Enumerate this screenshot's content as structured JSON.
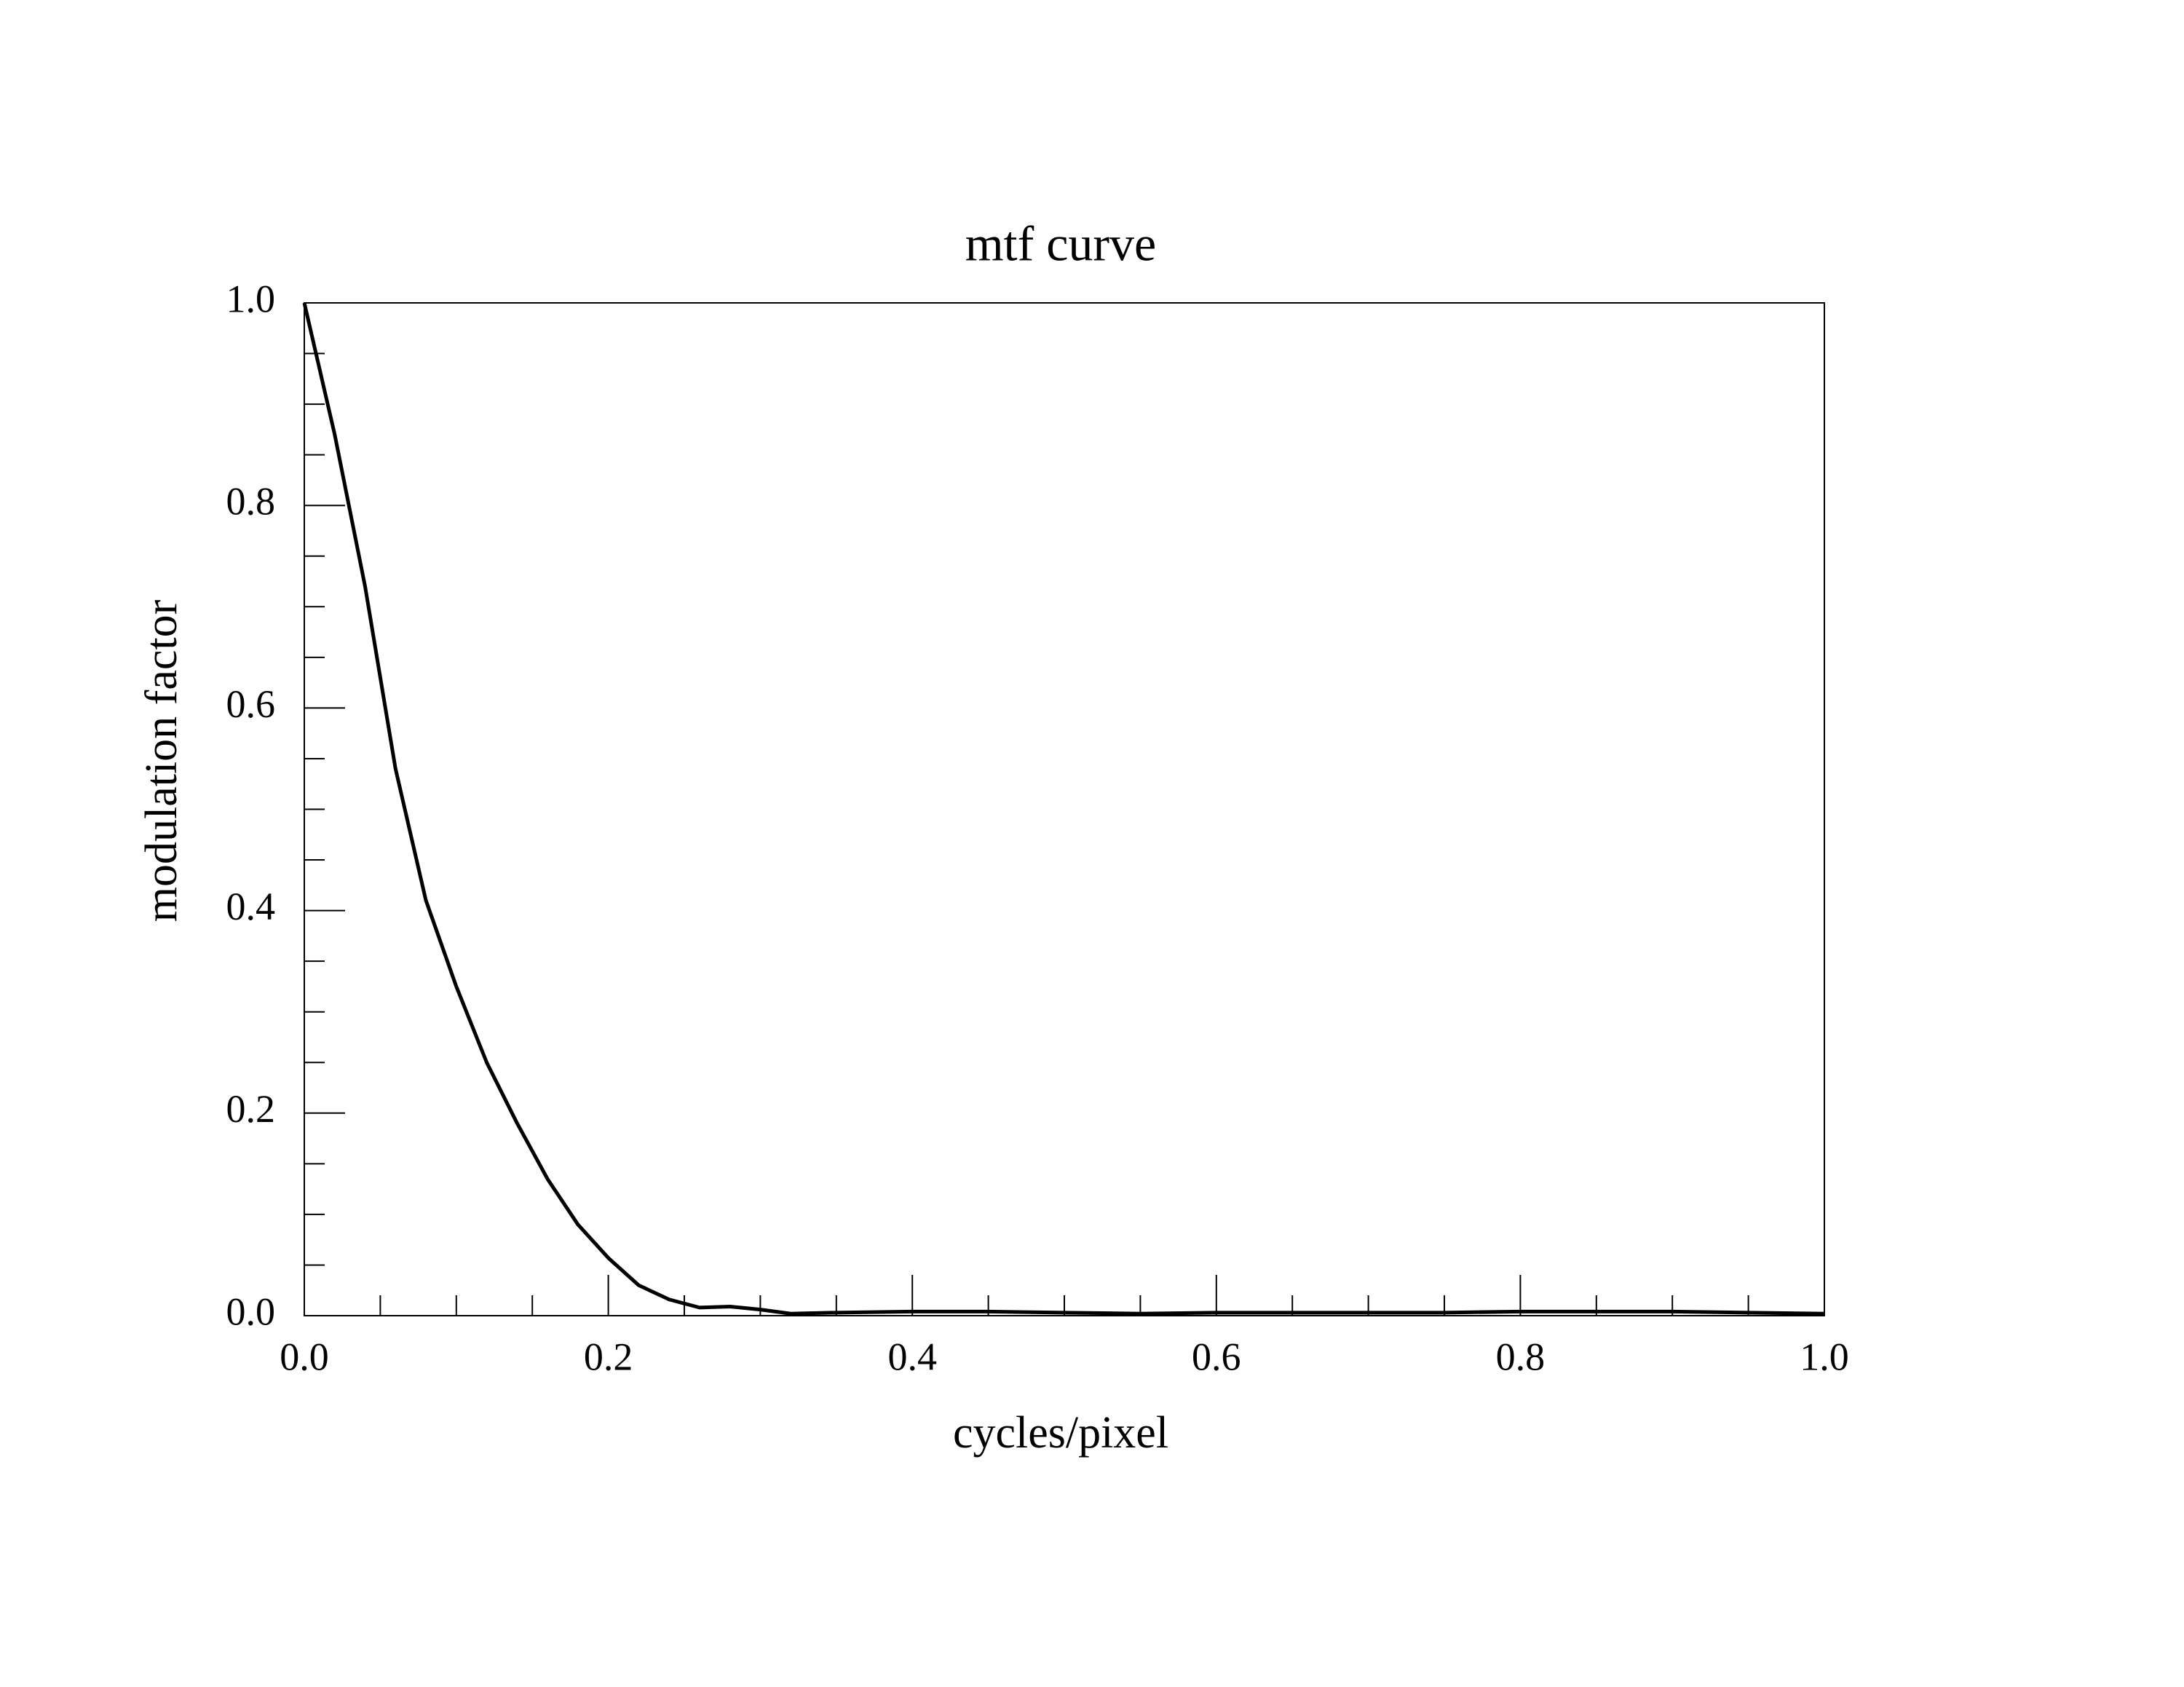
{
  "chart_data": {
    "type": "line",
    "title": "mtf curve",
    "x_label": "cycles/pixel",
    "y_label": "modulation factor",
    "x": [
      0,
      0.02,
      0.04,
      0.05,
      0.06,
      0.08,
      0.1,
      0.12,
      0.14,
      0.16,
      0.18,
      0.2,
      0.22,
      0.24,
      0.26,
      0.28,
      0.3,
      0.32,
      0.35,
      0.4,
      0.45,
      0.5,
      0.55,
      0.6,
      0.65,
      0.7,
      0.75,
      0.8,
      0.85,
      0.9,
      0.95,
      1.0
    ],
    "series": [
      {
        "color": "#000000",
        "values": [
          1.0,
          0.87,
          0.72,
          0.63,
          0.54,
          0.41,
          0.325,
          0.25,
          0.19,
          0.135,
          0.09,
          0.057,
          0.03,
          0.016,
          0.008,
          0.009,
          0.006,
          0.002,
          0.003,
          0.004,
          0.004,
          0.003,
          0.002,
          0.003,
          0.003,
          0.003,
          0.003,
          0.004,
          0.004,
          0.004,
          0.003,
          0.002
        ]
      }
    ],
    "xlim": [
      0,
      1
    ],
    "ylim": [
      0,
      1
    ],
    "xticks": [
      {
        "value": 0,
        "label": "0.0"
      },
      0.2,
      0.4,
      0.6,
      0.8,
      {
        "value": 1,
        "label": "1.0"
      }
    ],
    "yticks": [
      {
        "value": 0,
        "label": "0.0"
      },
      0.2,
      0.4,
      0.6,
      0.8,
      {
        "value": 1,
        "label": "1.0"
      }
    ]
  }
}
